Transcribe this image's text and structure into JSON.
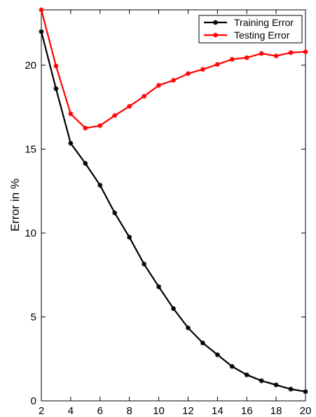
{
  "chart_data": {
    "type": "line",
    "title": "",
    "xlabel": "",
    "ylabel": "Error in %",
    "xlim": [
      2,
      20
    ],
    "ylim": [
      0,
      23.3
    ],
    "xticks": [
      2,
      4,
      6,
      8,
      10,
      12,
      14,
      16,
      18,
      20
    ],
    "yticks": [
      0,
      5,
      10,
      15,
      20
    ],
    "grid": false,
    "legend_position": "top-right",
    "x": [
      2,
      3,
      4,
      5,
      6,
      7,
      8,
      9,
      10,
      11,
      12,
      13,
      14,
      15,
      16,
      17,
      18,
      19,
      20
    ],
    "series": [
      {
        "name": "Training Error",
        "color": "#000000",
        "marker": "asterisk",
        "values": [
          22.0,
          18.6,
          15.35,
          14.15,
          12.85,
          11.2,
          9.75,
          8.15,
          6.8,
          5.5,
          4.35,
          3.45,
          2.75,
          2.05,
          1.55,
          1.2,
          0.95,
          0.7,
          0.55
        ]
      },
      {
        "name": "Testing Error",
        "color": "#ff0000",
        "marker": "asterisk",
        "values": [
          23.3,
          19.95,
          17.1,
          16.25,
          16.4,
          17.0,
          17.55,
          18.15,
          18.8,
          19.1,
          19.5,
          19.75,
          20.05,
          20.35,
          20.45,
          20.7,
          20.55,
          20.75,
          20.8
        ]
      }
    ]
  }
}
